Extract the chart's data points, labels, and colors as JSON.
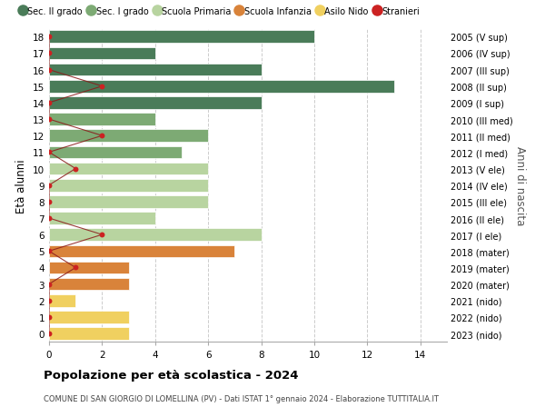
{
  "ages": [
    18,
    17,
    16,
    15,
    14,
    13,
    12,
    11,
    10,
    9,
    8,
    7,
    6,
    5,
    4,
    3,
    2,
    1,
    0
  ],
  "years": [
    "2005 (V sup)",
    "2006 (IV sup)",
    "2007 (III sup)",
    "2008 (II sup)",
    "2009 (I sup)",
    "2010 (III med)",
    "2011 (II med)",
    "2012 (I med)",
    "2013 (V ele)",
    "2014 (IV ele)",
    "2015 (III ele)",
    "2016 (II ele)",
    "2017 (I ele)",
    "2018 (mater)",
    "2019 (mater)",
    "2020 (mater)",
    "2021 (nido)",
    "2022 (nido)",
    "2023 (nido)"
  ],
  "bar_values": [
    10,
    4,
    8,
    13,
    8,
    4,
    6,
    5,
    6,
    6,
    6,
    4,
    8,
    7,
    3,
    3,
    1,
    3,
    3
  ],
  "bar_colors": [
    "#4a7c59",
    "#4a7c59",
    "#4a7c59",
    "#4a7c59",
    "#4a7c59",
    "#7daa74",
    "#7daa74",
    "#7daa74",
    "#b8d4a0",
    "#b8d4a0",
    "#b8d4a0",
    "#b8d4a0",
    "#b8d4a0",
    "#d9833a",
    "#d9833a",
    "#d9833a",
    "#f0d060",
    "#f0d060",
    "#f0d060"
  ],
  "stranieri_values": [
    0,
    0,
    0,
    2,
    0,
    0,
    2,
    0,
    1,
    0,
    0,
    0,
    2,
    0,
    1,
    0,
    0,
    0,
    0
  ],
  "title": "Popolazione per età scolastica - 2024",
  "subtitle": "COMUNE DI SAN GIORGIO DI LOMELLINA (PV) - Dati ISTAT 1° gennaio 2024 - Elaborazione TUTTITALIA.IT",
  "ylabel": "Età alunni",
  "ylabel_right": "Anni di nascita",
  "xlim": [
    0,
    15
  ],
  "xticks": [
    0,
    2,
    4,
    6,
    8,
    10,
    12,
    14
  ],
  "legend_labels": [
    "Sec. II grado",
    "Sec. I grado",
    "Scuola Primaria",
    "Scuola Infanzia",
    "Asilo Nido",
    "Stranieri"
  ],
  "legend_colors": [
    "#4a7c59",
    "#7daa74",
    "#b8d4a0",
    "#d9833a",
    "#f0d060",
    "#cc2222"
  ],
  "grid_color": "#cccccc",
  "bg_color": "#ffffff",
  "stranieri_line_color": "#8b1a1a"
}
